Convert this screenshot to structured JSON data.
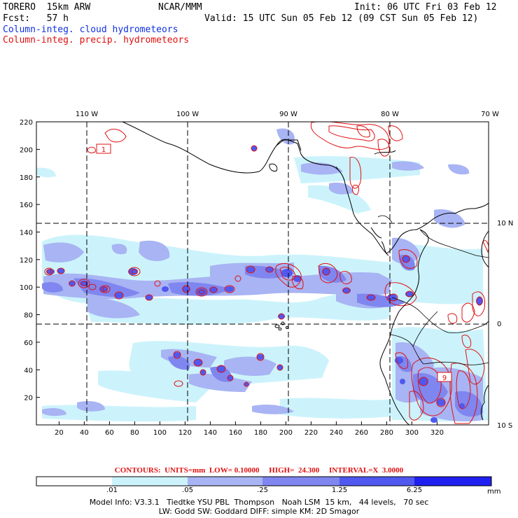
{
  "header": {
    "model": "TORERO  15km ARW",
    "center": "NCAR/MMM",
    "init": "Init: 06 UTC Fri 03 Feb 12",
    "fcst": "Fcst:   57 h",
    "valid": "Valid: 15 UTC Sun 05 Feb 12 (09 CST Sun 05 Feb 12)",
    "field1": "Column-integ. cloud hydrometeors",
    "field2": "Column-integ. precip. hydrometeors"
  },
  "colors": {
    "cloud_text": "#1030e0",
    "precip_text": "#e01010",
    "shade_01": "#ccf3fb",
    "shade_05": "#a8b4f3",
    "shade_25": "#7f86ef",
    "shade_125": "#5058ef",
    "shade_625": "#2020f0",
    "contour": "#e01010"
  },
  "map": {
    "lon_labels": [
      "110 W",
      "100 W",
      "90 W",
      "80 W",
      "70 W"
    ],
    "lat_labels": [
      "10 N",
      "0",
      "10 S"
    ],
    "y_ticks": [
      "20",
      "40",
      "60",
      "80",
      "100",
      "120",
      "140",
      "160",
      "180",
      "200",
      "220"
    ],
    "x_ticks": [
      "20",
      "40",
      "60",
      "80",
      "100",
      "120",
      "140",
      "160",
      "180",
      "200",
      "220",
      "240",
      "260",
      "280",
      "300",
      "320"
    ],
    "box_labels": [
      "1",
      "9"
    ]
  },
  "contour_info": {
    "text": "CONTOURS:  UNITS=mm  LOW= 0.10000     HIGH=  24.300     INTERVAL=X  3.0000"
  },
  "colorbar": {
    "labels": [
      ".01",
      ".05",
      ".25",
      "1.25",
      "6.25"
    ],
    "units": "mm"
  },
  "footer": {
    "line1": "Model Info: V3.3.1   Tiedtke YSU PBL  Thompson   Noah LSM  15 km,   44 levels,   70 sec",
    "line2": "LW: Godd SW: Goddard DIFF: simple KM: 2D Smagor"
  }
}
